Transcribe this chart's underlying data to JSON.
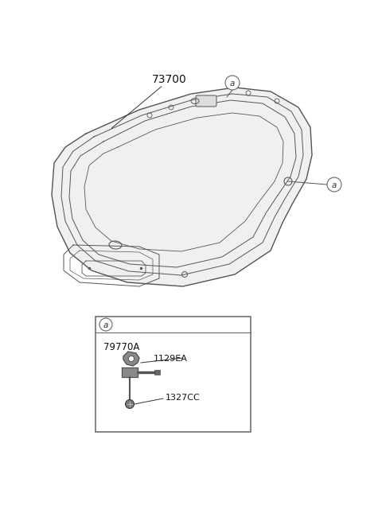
{
  "bg_color": "#ffffff",
  "main_label": "73700",
  "callout_a_label": "a",
  "detail_label_part": "79770A",
  "detail_sub1": "1129EA",
  "detail_sub2": "1327CC",
  "figsize": [
    4.8,
    6.55
  ],
  "dpi": 100,
  "line_color": "#555555",
  "line_color_dark": "#333333"
}
